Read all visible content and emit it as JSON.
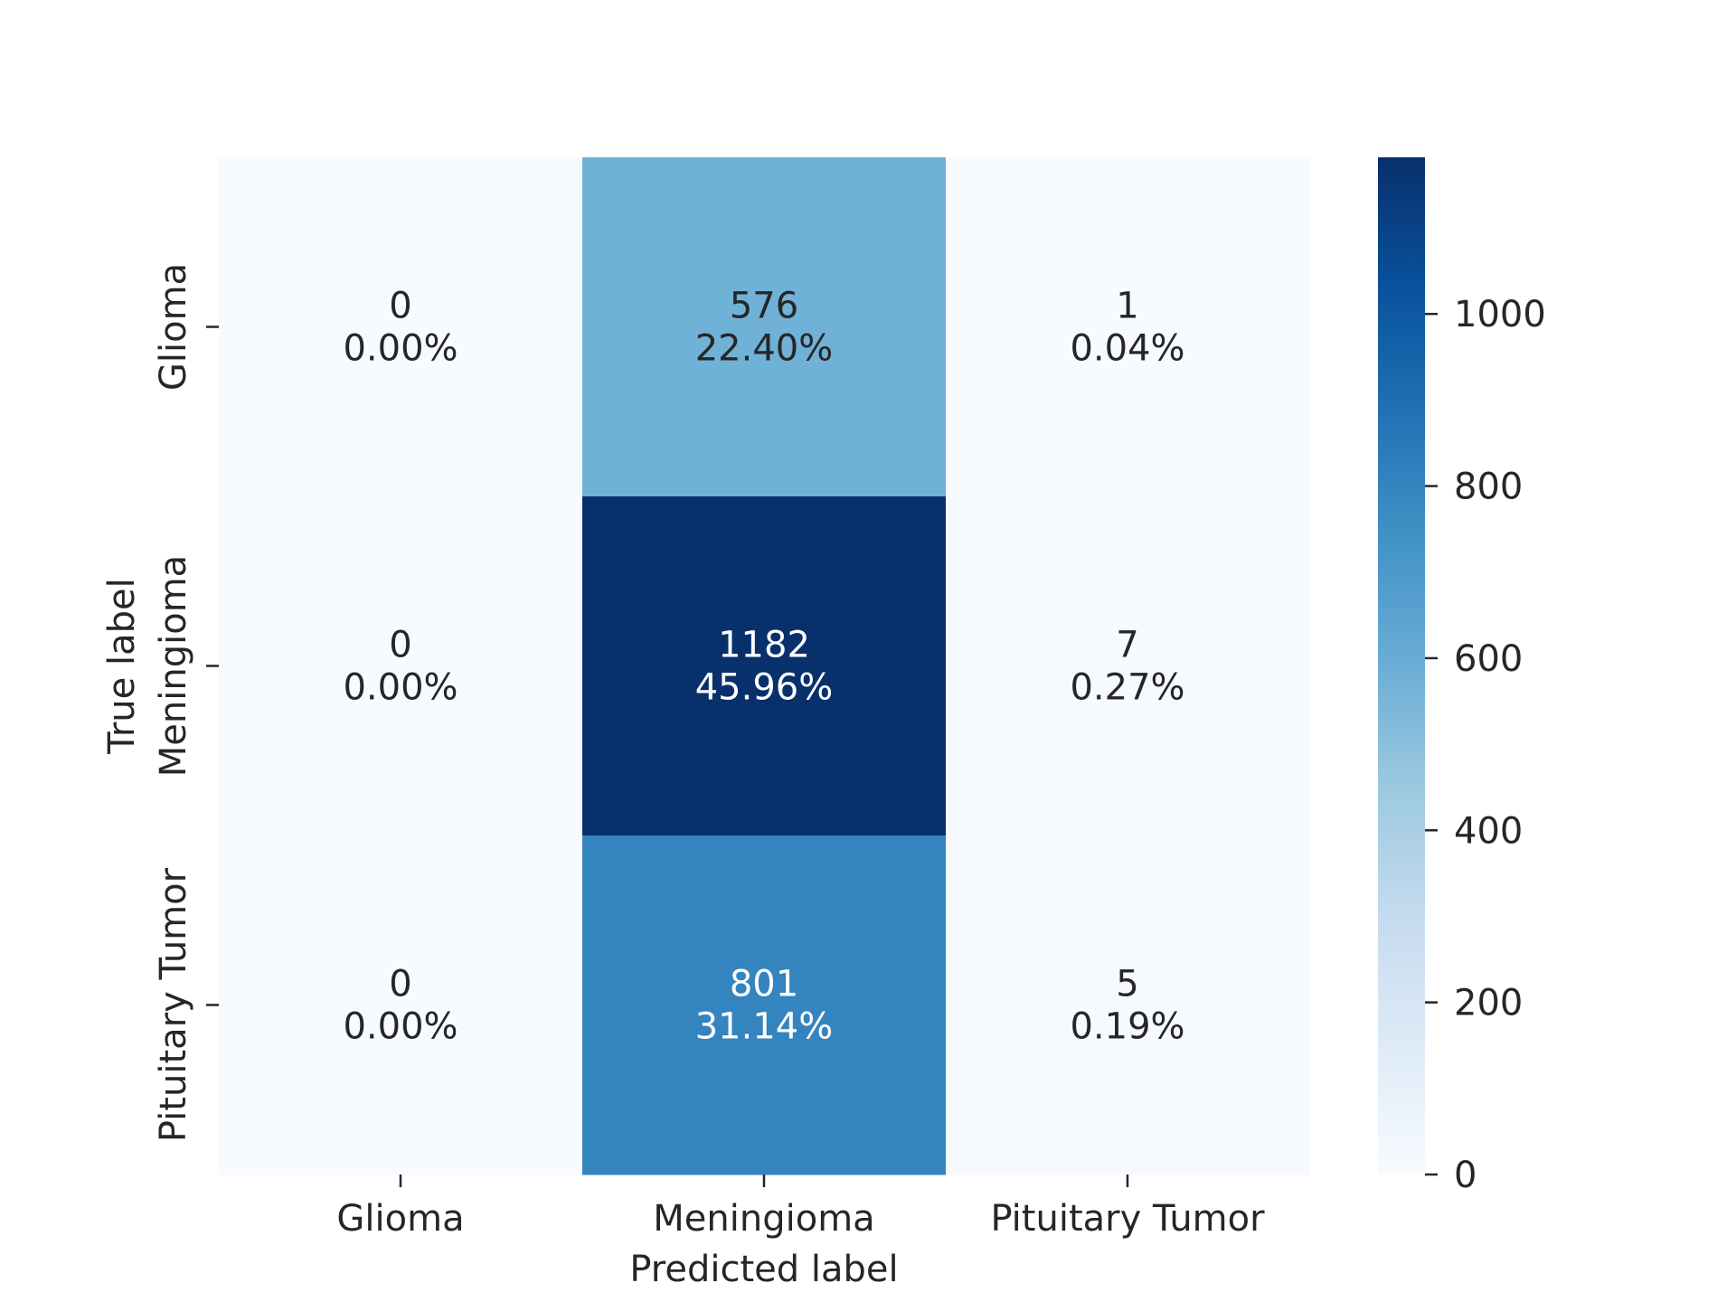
{
  "chart_data": {
    "type": "heatmap",
    "title": "",
    "xlabel": "Predicted label",
    "ylabel": "True label",
    "x_categories": [
      "Glioma",
      "Meningioma",
      "Pituitary Tumor"
    ],
    "y_categories": [
      "Glioma",
      "Meningioma",
      "Pituitary Tumor"
    ],
    "values": [
      [
        0,
        576,
        1
      ],
      [
        0,
        1182,
        7
      ],
      [
        0,
        801,
        5
      ]
    ],
    "percentages": [
      [
        "0.00%",
        "22.40%",
        "0.04%"
      ],
      [
        "0.00%",
        "45.96%",
        "0.27%"
      ],
      [
        "0.00%",
        "31.14%",
        "0.19%"
      ]
    ],
    "colormap": "Blues",
    "color_range": [
      0,
      1182
    ],
    "colorbar_ticks": [
      0,
      200,
      400,
      600,
      800,
      1000
    ],
    "colors": {
      "low": "#f7fbff",
      "high": "#08306b",
      "text_light": "#ffffff",
      "text_dark": "#262626"
    }
  }
}
